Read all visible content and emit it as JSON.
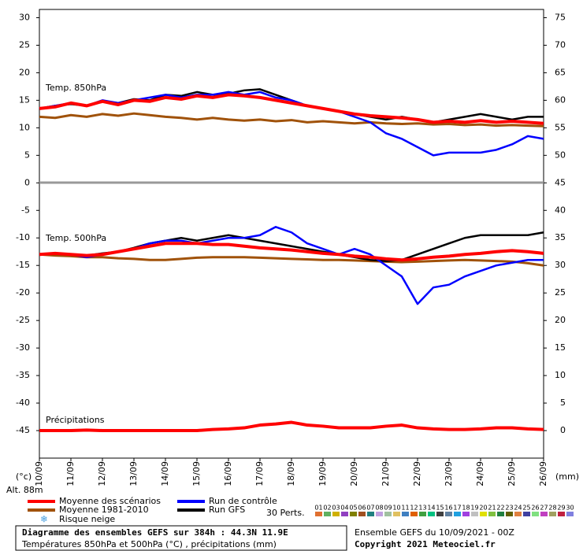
{
  "chart_data": {
    "type": "line",
    "xunit": "(°c)",
    "y2unit": "(mm)",
    "altitude": "Alt. 88m",
    "annotations": [
      "Temp. 850hPa",
      "Temp. 500hPa",
      "Précipitations"
    ],
    "xlim": [
      0,
      16
    ],
    "xticks": [
      {
        "value": 0,
        "label": "10/09"
      },
      {
        "value": 1,
        "label": "11/09"
      },
      {
        "value": 2,
        "label": "12/09"
      },
      {
        "value": 3,
        "label": "13/09"
      },
      {
        "value": 4,
        "label": "14/09"
      },
      {
        "value": 5,
        "label": "15/09"
      },
      {
        "value": 6,
        "label": "16/09"
      },
      {
        "value": 7,
        "label": "17/09"
      },
      {
        "value": 8,
        "label": "18/09"
      },
      {
        "value": 9,
        "label": "19/09"
      },
      {
        "value": 10,
        "label": "20/09"
      },
      {
        "value": 11,
        "label": "21/09"
      },
      {
        "value": 12,
        "label": "22/09"
      },
      {
        "value": 13,
        "label": "23/09"
      },
      {
        "value": 14,
        "label": "24/09"
      },
      {
        "value": 15,
        "label": "25/09"
      },
      {
        "value": 16,
        "label": "26/09"
      }
    ],
    "ylim": [
      -50,
      31.5
    ],
    "yticks": [
      30,
      25,
      20,
      15,
      10,
      5,
      0,
      -5,
      -10,
      -15,
      -20,
      -25,
      -30,
      -35,
      -40,
      -45
    ],
    "y2lim": [
      -5,
      76.5
    ],
    "y2ticks": [
      75,
      70,
      65,
      60,
      55,
      50,
      45,
      40,
      35,
      30,
      25,
      20,
      15,
      10,
      5,
      0
    ],
    "x": [
      0,
      0.5,
      1,
      1.5,
      2,
      2.5,
      3,
      3.5,
      4,
      4.5,
      5,
      5.5,
      6,
      6.5,
      7,
      7.5,
      8,
      8.5,
      9,
      9.5,
      10,
      10.5,
      11,
      11.5,
      12,
      12.5,
      13,
      13.5,
      14,
      14.5,
      15,
      15.5,
      16
    ],
    "series": [
      {
        "name": "Moyenne des scénarios",
        "color": "#ff0000",
        "width": 4,
        "t850": [
          13.5,
          13.8,
          14.5,
          14,
          14.8,
          14.2,
          15,
          14.8,
          15.5,
          15.2,
          15.8,
          15.5,
          16,
          15.8,
          15.5,
          15,
          14.5,
          14,
          13.5,
          13,
          12.5,
          12.2,
          12,
          11.8,
          11.5,
          11,
          11.2,
          11,
          11.3,
          11,
          11.2,
          11,
          10.8
        ],
        "t500": [
          -13,
          -12.8,
          -13,
          -13.2,
          -13,
          -12.5,
          -12,
          -11.5,
          -11,
          -11,
          -11,
          -11.2,
          -11.2,
          -11.5,
          -11.8,
          -12,
          -12.2,
          -12.5,
          -12.8,
          -13,
          -13.3,
          -13.5,
          -13.8,
          -14,
          -13.8,
          -13.5,
          -13.3,
          -13,
          -12.8,
          -12.5,
          -12.3,
          -12.5,
          -12.8
        ],
        "precip": [
          0,
          0,
          0,
          0.1,
          0,
          0,
          0,
          0,
          0,
          0,
          0,
          0.2,
          0.3,
          0.5,
          1,
          1.2,
          1.5,
          1,
          0.8,
          0.5,
          0.5,
          0.5,
          0.8,
          1,
          0.5,
          0.3,
          0.2,
          0.2,
          0.3,
          0.5,
          0.5,
          0.3,
          0.2
        ]
      },
      {
        "name": "Moyenne 1981-2010",
        "color": "#a0520a",
        "width": 3,
        "t850": [
          12,
          11.8,
          12.3,
          12,
          12.5,
          12.2,
          12.6,
          12.3,
          12,
          11.8,
          11.5,
          11.8,
          11.5,
          11.3,
          11.5,
          11.2,
          11.4,
          11,
          11.2,
          11,
          10.8,
          11,
          10.8,
          10.7,
          10.8,
          10.6,
          10.7,
          10.5,
          10.6,
          10.4,
          10.5,
          10.4,
          10.3
        ],
        "t500": [
          -13,
          -13.2,
          -13.3,
          -13.5,
          -13.5,
          -13.7,
          -13.8,
          -14,
          -14,
          -13.8,
          -13.6,
          -13.5,
          -13.5,
          -13.5,
          -13.6,
          -13.7,
          -13.8,
          -13.9,
          -14,
          -14,
          -14.1,
          -14.2,
          -14.3,
          -14.4,
          -14.3,
          -14.2,
          -14.1,
          -14,
          -14.1,
          -14.2,
          -14.3,
          -14.6,
          -15
        ]
      },
      {
        "name": "Run de contrôle",
        "color": "#0000ff",
        "width": 2.5,
        "t850": [
          13.5,
          14,
          14.5,
          14,
          15,
          14.5,
          15,
          15.5,
          16,
          15.5,
          16,
          16,
          16.5,
          16,
          16.5,
          15.5,
          15,
          14,
          13.5,
          13,
          12,
          11,
          9,
          8,
          6.5,
          5,
          5.5,
          5.5,
          5.5,
          6,
          7,
          8.5,
          8
        ],
        "t500": [
          -13,
          -12.8,
          -13,
          -13.5,
          -13,
          -12.5,
          -12,
          -11,
          -10.5,
          -10.5,
          -11,
          -10.5,
          -10,
          -10,
          -9.5,
          -8,
          -9,
          -11,
          -12,
          -13,
          -12,
          -13,
          -15,
          -17,
          -22,
          -19,
          -18.5,
          -17,
          -16,
          -15,
          -14.5,
          -14,
          -14
        ]
      },
      {
        "name": "Run GFS",
        "color": "#000000",
        "width": 2.5,
        "t850": [
          13.5,
          14,
          14.3,
          14,
          14.8,
          14.5,
          15.2,
          15,
          16,
          15.8,
          16.5,
          16,
          16.2,
          16.8,
          17,
          16,
          15,
          14,
          13.5,
          13,
          12.5,
          12,
          11.5,
          12,
          11.5,
          11,
          11.5,
          12,
          12.5,
          12,
          11.5,
          12,
          12
        ],
        "t500": [
          -13,
          -12.8,
          -13,
          -13.2,
          -12.8,
          -12.5,
          -11.8,
          -11,
          -10.5,
          -10,
          -10.5,
          -10,
          -9.5,
          -10,
          -10.5,
          -11,
          -11.5,
          -12,
          -12.5,
          -13,
          -13.5,
          -14,
          -14.2,
          -14,
          -13,
          -12,
          -11,
          -10,
          -9.5,
          -9.5,
          -9.5,
          -9.5,
          -9
        ]
      }
    ],
    "snow_legend": "Risque neige",
    "perturbations": {
      "label": "30 Perts.",
      "members": [
        {
          "name": "01",
          "color": "#e07030"
        },
        {
          "name": "02",
          "color": "#60b060"
        },
        {
          "name": "03",
          "color": "#d0b000"
        },
        {
          "name": "04",
          "color": "#9040c0"
        },
        {
          "name": "05",
          "color": "#808000"
        },
        {
          "name": "06",
          "color": "#a05020"
        },
        {
          "name": "07",
          "color": "#208080"
        },
        {
          "name": "08",
          "color": "#c0a0e0"
        },
        {
          "name": "09",
          "color": "#a0c0a0"
        },
        {
          "name": "10",
          "color": "#e0c060"
        },
        {
          "name": "11",
          "color": "#4080c0"
        },
        {
          "name": "12",
          "color": "#e06000"
        },
        {
          "name": "13",
          "color": "#40a040"
        },
        {
          "name": "14",
          "color": "#00c080"
        },
        {
          "name": "15",
          "color": "#404040"
        },
        {
          "name": "16",
          "color": "#6080a0"
        },
        {
          "name": "17",
          "color": "#20a0e0"
        },
        {
          "name": "18",
          "color": "#a040e0"
        },
        {
          "name": "19",
          "color": "#c0c0c0"
        },
        {
          "name": "20",
          "color": "#e0e000"
        },
        {
          "name": "21",
          "color": "#80c040"
        },
        {
          "name": "22",
          "color": "#208040"
        },
        {
          "name": "23",
          "color": "#606000"
        },
        {
          "name": "24",
          "color": "#e08040"
        },
        {
          "name": "25",
          "color": "#4040a0"
        },
        {
          "name": "26",
          "color": "#80e080"
        },
        {
          "name": "27",
          "color": "#c040c0"
        },
        {
          "name": "28",
          "color": "#a0a060"
        },
        {
          "name": "29",
          "color": "#c02040"
        },
        {
          "name": "30",
          "color": "#8080e0"
        }
      ]
    },
    "footer": {
      "title": "Diagramme des ensembles GEFS sur 384h : 44.3N 11.9E",
      "subtitle": "Températures 850hPa et 500hPa (°C) , précipitations (mm)",
      "run": "Ensemble GEFS du 10/09/2021 - 00Z",
      "copyright": "Copyright 2021 Meteociel.fr"
    }
  }
}
